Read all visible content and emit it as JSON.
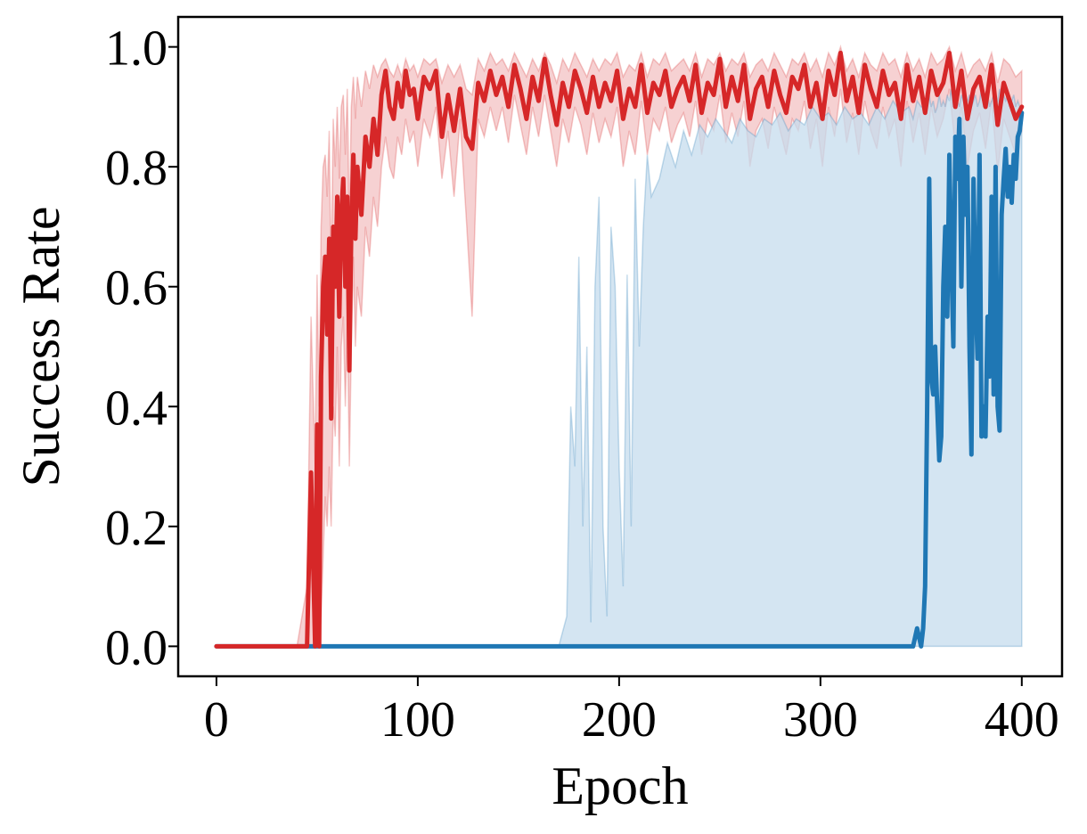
{
  "chart_data": {
    "type": "line",
    "title": "",
    "xlabel": "Epoch",
    "ylabel": "Success Rate",
    "xlim": [
      -19,
      420
    ],
    "ylim": [
      -0.05,
      1.05
    ],
    "xticks": [
      0,
      100,
      200,
      300,
      400
    ],
    "yticks": [
      0.0,
      0.2,
      0.4,
      0.6,
      0.8,
      1.0
    ],
    "xtick_labels": [
      "0",
      "100",
      "200",
      "300",
      "400"
    ],
    "ytick_labels": [
      "0.0",
      "0.2",
      "0.4",
      "0.6",
      "0.8",
      "1.0"
    ],
    "grid": false,
    "legend": "none",
    "series": [
      {
        "color": "#d62728",
        "band_color": "#f3c1c3",
        "x": [
          0,
          40,
          45,
          47,
          49,
          50,
          51,
          52,
          53,
          54,
          55,
          56,
          57,
          58,
          59,
          60,
          61,
          62,
          63,
          64,
          65,
          66,
          67,
          68,
          69,
          70,
          72,
          74,
          76,
          78,
          80,
          82,
          84,
          86,
          88,
          90,
          92,
          94,
          96,
          98,
          100,
          103,
          106,
          109,
          112,
          115,
          118,
          121,
          124,
          127,
          130,
          133,
          136,
          139,
          142,
          145,
          148,
          151,
          154,
          157,
          160,
          163,
          166,
          169,
          172,
          175,
          178,
          181,
          184,
          187,
          190,
          193,
          196,
          199,
          202,
          205,
          208,
          211,
          214,
          217,
          220,
          223,
          226,
          229,
          232,
          235,
          238,
          241,
          244,
          247,
          250,
          253,
          256,
          259,
          262,
          265,
          268,
          271,
          274,
          277,
          280,
          283,
          286,
          289,
          292,
          295,
          298,
          301,
          304,
          307,
          310,
          313,
          316,
          319,
          322,
          325,
          328,
          331,
          334,
          337,
          340,
          343,
          346,
          349,
          352,
          355,
          358,
          361,
          364,
          367,
          370,
          373,
          376,
          379,
          382,
          385,
          388,
          391,
          394,
          397,
          400
        ],
        "mean": [
          0,
          0,
          0,
          0.29,
          0,
          0.37,
          0,
          0.45,
          0.6,
          0.65,
          0.52,
          0.68,
          0.38,
          0.7,
          0.6,
          0.75,
          0.55,
          0.72,
          0.78,
          0.6,
          0.75,
          0.46,
          0.7,
          0.82,
          0.68,
          0.8,
          0.72,
          0.85,
          0.8,
          0.88,
          0.82,
          0.92,
          0.96,
          0.9,
          0.88,
          0.94,
          0.9,
          0.96,
          0.92,
          0.93,
          0.88,
          0.95,
          0.93,
          0.96,
          0.85,
          0.92,
          0.86,
          0.93,
          0.85,
          0.83,
          0.94,
          0.91,
          0.96,
          0.92,
          0.95,
          0.9,
          0.97,
          0.93,
          0.88,
          0.95,
          0.91,
          0.98,
          0.92,
          0.87,
          0.94,
          0.9,
          0.96,
          0.93,
          0.89,
          0.95,
          0.9,
          0.94,
          0.91,
          0.96,
          0.88,
          0.93,
          0.9,
          0.97,
          0.89,
          0.94,
          0.92,
          0.96,
          0.9,
          0.93,
          0.95,
          0.91,
          0.97,
          0.89,
          0.94,
          0.92,
          0.98,
          0.9,
          0.95,
          0.91,
          0.97,
          0.88,
          0.93,
          0.95,
          0.9,
          0.96,
          0.92,
          0.89,
          0.95,
          0.93,
          0.97,
          0.9,
          0.94,
          0.88,
          0.96,
          0.92,
          0.99,
          0.91,
          0.95,
          0.89,
          0.97,
          0.93,
          0.9,
          0.96,
          0.92,
          0.94,
          0.88,
          0.97,
          0.91,
          0.95,
          0.89,
          0.96,
          0.92,
          0.94,
          0.99,
          0.9,
          0.96,
          0.88,
          0.93,
          0.95,
          0.9,
          0.97,
          0.87,
          0.94,
          0.91,
          0.88,
          0.9
        ],
        "lower": [
          0,
          0,
          0,
          0,
          0,
          0,
          0,
          0.05,
          0.15,
          0.25,
          0.2,
          0.3,
          0.2,
          0.4,
          0.35,
          0.5,
          0.3,
          0.5,
          0.55,
          0.4,
          0.55,
          0.3,
          0.5,
          0.65,
          0.5,
          0.6,
          0.55,
          0.7,
          0.65,
          0.75,
          0.7,
          0.8,
          0.85,
          0.8,
          0.78,
          0.85,
          0.82,
          0.88,
          0.84,
          0.86,
          0.8,
          0.88,
          0.85,
          0.9,
          0.78,
          0.86,
          0.75,
          0.88,
          0.72,
          0.55,
          0.88,
          0.85,
          0.9,
          0.86,
          0.9,
          0.84,
          0.92,
          0.87,
          0.82,
          0.9,
          0.85,
          0.92,
          0.86,
          0.8,
          0.88,
          0.84,
          0.9,
          0.87,
          0.82,
          0.89,
          0.84,
          0.88,
          0.85,
          0.9,
          0.8,
          0.86,
          0.82,
          0.91,
          0.82,
          0.88,
          0.86,
          0.9,
          0.84,
          0.87,
          0.89,
          0.85,
          0.91,
          0.82,
          0.88,
          0.86,
          0.92,
          0.84,
          0.89,
          0.85,
          0.91,
          0.8,
          0.86,
          0.88,
          0.83,
          0.9,
          0.86,
          0.82,
          0.88,
          0.86,
          0.91,
          0.83,
          0.88,
          0.8,
          0.9,
          0.85,
          0.93,
          0.84,
          0.89,
          0.82,
          0.91,
          0.86,
          0.83,
          0.9,
          0.85,
          0.88,
          0.8,
          0.91,
          0.84,
          0.89,
          0.82,
          0.9,
          0.85,
          0.88,
          0.93,
          0.83,
          0.9,
          0.8,
          0.86,
          0.89,
          0.83,
          0.91,
          0.79,
          0.88,
          0.85,
          0.82,
          0.86
        ],
        "upper": [
          0,
          0,
          0.1,
          0.55,
          0.3,
          0.62,
          0.4,
          0.7,
          0.8,
          0.82,
          0.75,
          0.86,
          0.6,
          0.88,
          0.8,
          0.9,
          0.78,
          0.9,
          0.92,
          0.82,
          0.93,
          0.7,
          0.9,
          0.95,
          0.88,
          0.95,
          0.9,
          0.96,
          0.93,
          0.97,
          0.95,
          0.97,
          0.98,
          0.96,
          0.95,
          0.97,
          0.95,
          0.98,
          0.96,
          0.97,
          0.95,
          0.98,
          0.97,
          0.98,
          0.94,
          0.97,
          0.95,
          0.97,
          0.93,
          0.92,
          0.98,
          0.96,
          0.99,
          0.97,
          0.98,
          0.96,
          0.99,
          0.97,
          0.95,
          0.98,
          0.96,
          0.99,
          0.97,
          0.94,
          0.98,
          0.96,
          0.99,
          0.97,
          0.95,
          0.98,
          0.96,
          0.98,
          0.97,
          0.99,
          0.95,
          0.97,
          0.96,
          0.99,
          0.95,
          0.98,
          0.97,
          0.99,
          0.96,
          0.97,
          0.98,
          0.96,
          0.99,
          0.95,
          0.98,
          0.97,
          0.99,
          0.96,
          0.98,
          0.97,
          0.99,
          0.95,
          0.97,
          0.98,
          0.96,
          0.99,
          0.97,
          0.95,
          0.98,
          0.97,
          0.99,
          0.96,
          0.98,
          0.95,
          0.99,
          0.97,
          1.0,
          0.96,
          0.98,
          0.95,
          0.99,
          0.97,
          0.96,
          0.99,
          0.97,
          0.98,
          0.95,
          0.99,
          0.96,
          0.98,
          0.95,
          0.99,
          0.97,
          0.98,
          1.0,
          0.96,
          0.99,
          0.95,
          0.97,
          0.98,
          0.96,
          0.99,
          0.94,
          0.98,
          0.97,
          0.95,
          0.96
        ]
      },
      {
        "color": "#1f77b4",
        "band_color": "#c6dcee",
        "x": [
          0,
          170,
          174,
          176,
          178,
          180,
          182,
          184,
          186,
          188,
          190,
          192,
          194,
          196,
          198,
          200,
          202,
          204,
          206,
          208,
          210,
          212,
          214,
          216,
          220,
          224,
          228,
          232,
          236,
          240,
          244,
          248,
          252,
          256,
          260,
          264,
          268,
          272,
          276,
          280,
          284,
          288,
          292,
          296,
          300,
          304,
          308,
          312,
          316,
          320,
          324,
          328,
          332,
          336,
          340,
          344,
          346,
          348,
          350,
          351,
          352,
          353,
          354,
          355,
          356,
          357,
          358,
          359,
          360,
          361,
          362,
          363,
          364,
          365,
          366,
          367,
          368,
          369,
          370,
          371,
          372,
          373,
          374,
          375,
          376,
          377,
          378,
          379,
          380,
          381,
          382,
          383,
          384,
          385,
          386,
          387,
          388,
          389,
          390,
          391,
          392,
          393,
          394,
          395,
          396,
          397,
          398,
          399,
          400
        ],
        "mean": [
          0,
          0,
          0,
          0,
          0,
          0,
          0,
          0,
          0,
          0,
          0,
          0,
          0,
          0,
          0,
          0,
          0,
          0,
          0,
          0,
          0,
          0,
          0,
          0,
          0,
          0,
          0,
          0,
          0,
          0,
          0,
          0,
          0,
          0,
          0,
          0,
          0,
          0,
          0,
          0,
          0,
          0,
          0,
          0,
          0,
          0,
          0,
          0,
          0,
          0,
          0,
          0,
          0,
          0,
          0,
          0,
          0,
          0.03,
          0,
          0.03,
          0.1,
          0.4,
          0.78,
          0.45,
          0.42,
          0.5,
          0.4,
          0.31,
          0.35,
          0.6,
          0.7,
          0.55,
          0.82,
          0.65,
          0.5,
          0.85,
          0.78,
          0.88,
          0.6,
          0.85,
          0.72,
          0.8,
          0.5,
          0.32,
          0.78,
          0.6,
          0.48,
          0.82,
          0.35,
          0.4,
          0.35,
          0.55,
          0.45,
          0.75,
          0.42,
          0.8,
          0.4,
          0.36,
          0.72,
          0.78,
          0.83,
          0.75,
          0.8,
          0.74,
          0.82,
          0.78,
          0.85,
          0.86,
          0.89
        ],
        "lower": [
          0,
          0,
          0,
          0,
          0,
          0,
          0,
          0,
          0,
          0,
          0,
          0,
          0,
          0,
          0,
          0,
          0,
          0,
          0,
          0,
          0,
          0,
          0,
          0,
          0,
          0,
          0,
          0,
          0,
          0,
          0,
          0,
          0,
          0,
          0,
          0,
          0,
          0,
          0,
          0,
          0,
          0,
          0,
          0,
          0,
          0,
          0,
          0,
          0,
          0,
          0,
          0,
          0,
          0,
          0,
          0,
          0,
          0,
          0,
          0,
          0,
          0,
          0,
          0,
          0,
          0,
          0,
          0,
          0,
          0,
          0,
          0,
          0,
          0,
          0,
          0,
          0,
          0,
          0,
          0,
          0,
          0,
          0,
          0,
          0,
          0,
          0,
          0,
          0,
          0,
          0,
          0,
          0,
          0,
          0,
          0,
          0,
          0,
          0,
          0,
          0,
          0,
          0,
          0,
          0,
          0,
          0,
          0,
          0
        ],
        "upper": [
          0,
          0,
          0.05,
          0.4,
          0.3,
          0.65,
          0.2,
          0.5,
          0.04,
          0.6,
          0.75,
          0.2,
          0.05,
          0.7,
          0.6,
          0.3,
          0.1,
          0.62,
          0.2,
          0.78,
          0.5,
          0.7,
          0.82,
          0.75,
          0.78,
          0.84,
          0.8,
          0.86,
          0.82,
          0.87,
          0.85,
          0.88,
          0.86,
          0.84,
          0.88,
          0.86,
          0.85,
          0.88,
          0.87,
          0.89,
          0.86,
          0.88,
          0.87,
          0.9,
          0.88,
          0.89,
          0.87,
          0.9,
          0.88,
          0.89,
          0.87,
          0.9,
          0.88,
          0.91,
          0.89,
          0.9,
          0.88,
          0.91,
          0.9,
          0.9,
          0.91,
          0.9,
          0.92,
          0.9,
          0.91,
          0.89,
          0.9,
          0.92,
          0.9,
          0.91,
          0.9,
          0.92,
          0.91,
          0.93,
          0.9,
          0.92,
          0.91,
          0.9,
          0.92,
          0.91,
          0.9,
          0.91,
          0.92,
          0.9,
          0.91,
          0.92,
          0.9,
          0.91,
          0.93,
          0.9,
          0.91,
          0.92,
          0.9,
          0.91,
          0.92,
          0.9,
          0.91,
          0.93,
          0.9,
          0.92,
          0.91,
          0.92,
          0.9,
          0.91,
          0.92,
          0.9,
          0.91,
          0.9,
          0.9
        ]
      }
    ]
  }
}
